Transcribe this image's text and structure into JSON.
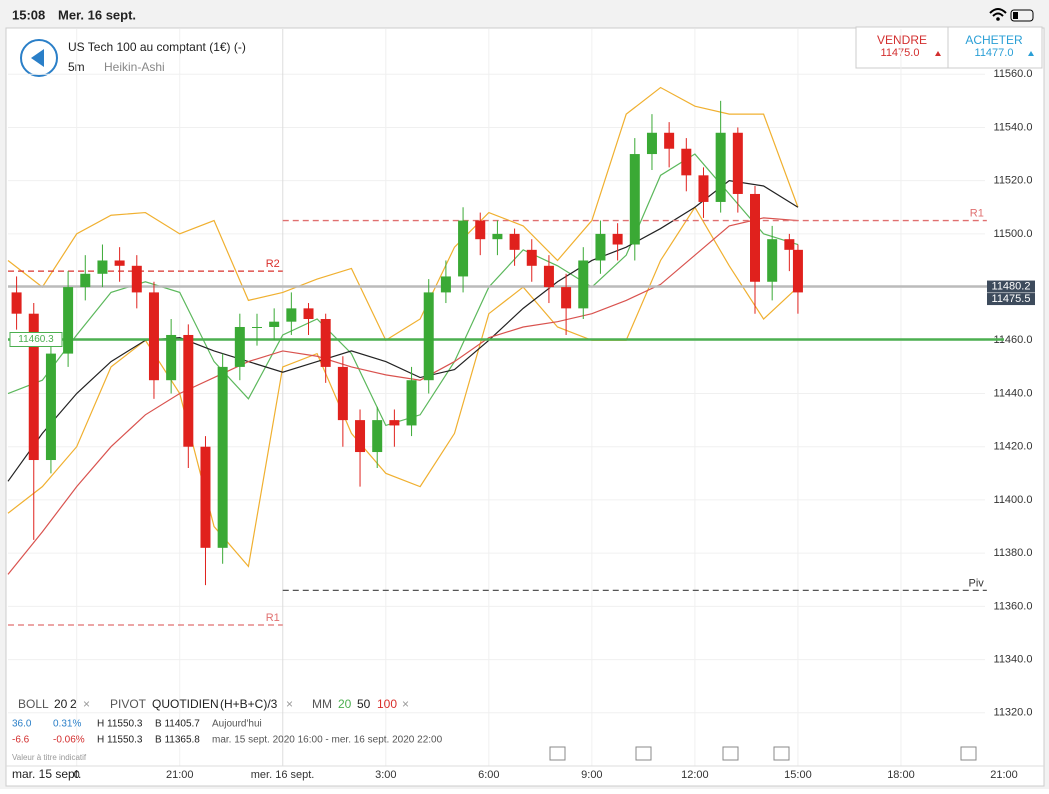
{
  "status_bar": {
    "time": "15:08",
    "date": "Mer. 16 sept."
  },
  "header": {
    "title": "US Tech 100 au comptant (1€) (-)",
    "interval": "5m",
    "chart_style": "Heikin-Ashi"
  },
  "trade": {
    "sell": {
      "label": "VENDRE",
      "price": "11475.0"
    },
    "buy": {
      "label": "ACHETER",
      "price": "11477.0"
    }
  },
  "indicators": {
    "boll": {
      "name": "BOLL",
      "period": "20",
      "deviation": "2"
    },
    "pivot": {
      "name": "PIVOT",
      "period": "QUOTIDIEN",
      "formula": "(H+B+C)/3"
    },
    "mm": {
      "name": "MM",
      "periods": [
        "20",
        "50",
        "100"
      ]
    }
  },
  "stats": [
    {
      "change": "36.0",
      "change_pct": "0.31%",
      "high": "H 11550.3",
      "low": "B 11405.7",
      "period": "Aujourd'hui"
    },
    {
      "change": "-6.6",
      "change_pct": "-0.06%",
      "high": "H 11550.3",
      "low": "B 11365.8",
      "period": "mar. 15 sept. 2020 16:00 - mer. 16 sept. 2020 22:00"
    }
  ],
  "note": "Valeur à titre indicatif",
  "chart_data": {
    "type": "candlestick",
    "x_start_label": "mar. 15 sept.",
    "xlim": [
      -8,
      21
    ],
    "ylim": [
      11300,
      11577
    ],
    "xticks": [
      {
        "value": -6,
        "label": "0"
      },
      {
        "value": -3,
        "label": "21:00"
      },
      {
        "value": 0,
        "label": "mer. 16 sept."
      },
      {
        "value": 3,
        "label": "3:00"
      },
      {
        "value": 6,
        "label": "6:00"
      },
      {
        "value": 9,
        "label": "9:00"
      },
      {
        "value": 12,
        "label": "12:00"
      },
      {
        "value": 15,
        "label": "15:00"
      },
      {
        "value": 18,
        "label": "18:00"
      },
      {
        "value": 21,
        "label": "21:00"
      }
    ],
    "yticks": [
      {
        "value": 11320,
        "label": "11320.0"
      },
      {
        "value": 11340,
        "label": "11340.0"
      },
      {
        "value": 11360,
        "label": "11360.0"
      },
      {
        "value": 11380,
        "label": "11380.0"
      },
      {
        "value": 11400,
        "label": "11400.0"
      },
      {
        "value": 11420,
        "label": "11420.0"
      },
      {
        "value": 11440,
        "label": "11440.0"
      },
      {
        "value": 11460,
        "label": "11460.0"
      },
      {
        "value": 11480,
        "label": "11480.0"
      },
      {
        "value": 11500,
        "label": "11500.0"
      },
      {
        "value": 11520,
        "label": "11520.0"
      },
      {
        "value": 11540,
        "label": "11540.0"
      },
      {
        "value": 11560,
        "label": "11560.0"
      }
    ],
    "grid": true,
    "candles": {
      "up_color": "#3aa935",
      "down_color": "#e0211d",
      "x": [
        -7.75,
        -7.25,
        -6.75,
        -6.25,
        -5.75,
        -5.25,
        -4.75,
        -4.25,
        -3.75,
        -3.25,
        -2.75,
        -2.25,
        -1.75,
        -1.25,
        -0.75,
        -0.25,
        0.25,
        0.75,
        1.25,
        1.75,
        2.25,
        2.75,
        3.25,
        3.75,
        4.25,
        4.75,
        5.25,
        5.75,
        6.25,
        6.75,
        7.25,
        7.75,
        8.25,
        8.75,
        9.25,
        9.75,
        10.25,
        10.75,
        11.25,
        11.75,
        12.25,
        12.75,
        13.25,
        13.75,
        14.25,
        14.75,
        15.0
      ],
      "open": [
        11478,
        11470,
        11415,
        11455,
        11480,
        11485,
        11490,
        11488,
        11478,
        11445,
        11462,
        11420,
        11382,
        11450,
        11465,
        11465,
        11467,
        11472,
        11468,
        11450,
        11430,
        11418,
        11430,
        11428,
        11445,
        11478,
        11484,
        11505,
        11498,
        11500,
        11494,
        11488,
        11480,
        11472,
        11490,
        11500,
        11496,
        11530,
        11538,
        11532,
        11522,
        11512,
        11538,
        11515,
        11482,
        11498,
        11494
      ],
      "high": [
        11484,
        11474,
        11460,
        11486,
        11492,
        11496,
        11495,
        11492,
        11482,
        11468,
        11466,
        11424,
        11455,
        11470,
        11470,
        11472,
        11478,
        11474,
        11470,
        11454,
        11434,
        11435,
        11434,
        11450,
        11483,
        11490,
        11510,
        11508,
        11505,
        11502,
        11498,
        11492,
        11485,
        11495,
        11505,
        11504,
        11536,
        11545,
        11542,
        11536,
        11525,
        11550,
        11540,
        11518,
        11503,
        11500,
        11496
      ],
      "low": [
        11464,
        11385,
        11410,
        11450,
        11475,
        11480,
        11482,
        11472,
        11438,
        11440,
        11412,
        11368,
        11376,
        11445,
        11458,
        11460,
        11462,
        11462,
        11444,
        11420,
        11405,
        11412,
        11420,
        11424,
        11440,
        11474,
        11478,
        11492,
        11492,
        11488,
        11482,
        11474,
        11462,
        11468,
        11485,
        11490,
        11490,
        11524,
        11525,
        11516,
        11506,
        11508,
        11508,
        11470,
        11475,
        11486,
        11470
      ],
      "close": [
        11470,
        11415,
        11455,
        11480,
        11485,
        11490,
        11488,
        11478,
        11445,
        11462,
        11420,
        11382,
        11450,
        11465,
        11465,
        11467,
        11472,
        11468,
        11450,
        11430,
        11418,
        11430,
        11428,
        11445,
        11478,
        11484,
        11505,
        11498,
        11500,
        11494,
        11488,
        11480,
        11472,
        11490,
        11500,
        11496,
        11530,
        11538,
        11532,
        11522,
        11512,
        11538,
        11515,
        11482,
        11498,
        11494,
        11478
      ]
    },
    "lines": {
      "x": [
        -8,
        -7,
        -6,
        -5,
        -4,
        -3,
        -2,
        -1,
        0,
        1,
        2,
        3,
        4,
        5,
        6,
        7,
        8,
        9,
        10,
        11,
        12,
        13,
        14,
        15
      ],
      "series": [
        {
          "color": "#f0b030",
          "values": [
            11490,
            11480,
            11500,
            11507,
            11508,
            11500,
            11505,
            11475,
            11478,
            11483,
            11487,
            11460,
            11468,
            11495,
            11508,
            11503,
            11490,
            11505,
            11545,
            11555,
            11548,
            11545,
            11545,
            11510
          ]
        },
        {
          "color": "#f0b030",
          "values": [
            11395,
            11405,
            11420,
            11450,
            11460,
            11440,
            11390,
            11375,
            11450,
            11455,
            11425,
            11410,
            11405,
            11425,
            11470,
            11480,
            11465,
            11460,
            11460,
            11490,
            11510,
            11488,
            11468,
            11480
          ]
        },
        {
          "color": "#5cb85c",
          "values": [
            11440,
            11445,
            11462,
            11478,
            11482,
            11478,
            11452,
            11438,
            11462,
            11468,
            11455,
            11428,
            11432,
            11452,
            11480,
            11494,
            11488,
            11480,
            11492,
            11522,
            11530,
            11515,
            11500,
            11496
          ]
        },
        {
          "color": "#222222",
          "values": [
            11407,
            11425,
            11440,
            11452,
            11460,
            11461,
            11456,
            11452,
            11448,
            11452,
            11456,
            11452,
            11446,
            11449,
            11460,
            11472,
            11482,
            11490,
            11495,
            11502,
            11510,
            11520,
            11518,
            11510
          ]
        },
        {
          "color": "#d9534f",
          "values": [
            11372,
            11388,
            11405,
            11420,
            11432,
            11440,
            11446,
            11452,
            11456,
            11454,
            11450,
            11447,
            11445,
            11452,
            11461,
            11465,
            11467,
            11470,
            11475,
            11481,
            11492,
            11503,
            11506,
            11505
          ]
        }
      ]
    },
    "levels": [
      {
        "label": "R2",
        "value": 11486,
        "from": -8,
        "to": 0,
        "color": "#d9302c",
        "dash": true
      },
      {
        "label": "R1",
        "value": 11353,
        "from": -8,
        "to": 0,
        "color": "#e07070",
        "dash": true
      },
      {
        "label": "R1",
        "value": 11505,
        "from": 0,
        "to": 20.5,
        "color": "#e07070",
        "dash": true
      },
      {
        "label": "Piv",
        "value": 11366,
        "from": 0,
        "to": 20.5,
        "color": "#555555",
        "dash": true
      },
      {
        "value": 11460.3,
        "from": -8,
        "to": 21,
        "color": "#4caf50",
        "dash": false
      },
      {
        "value": 11480.2,
        "from": -8,
        "to": 21,
        "color": "#bbbbbb",
        "dash": false
      }
    ],
    "price_tags": [
      {
        "value": 11480.2,
        "side": "right"
      },
      {
        "value": 11475.5,
        "side": "right"
      },
      {
        "value": 11460.3,
        "side": "left"
      }
    ]
  }
}
